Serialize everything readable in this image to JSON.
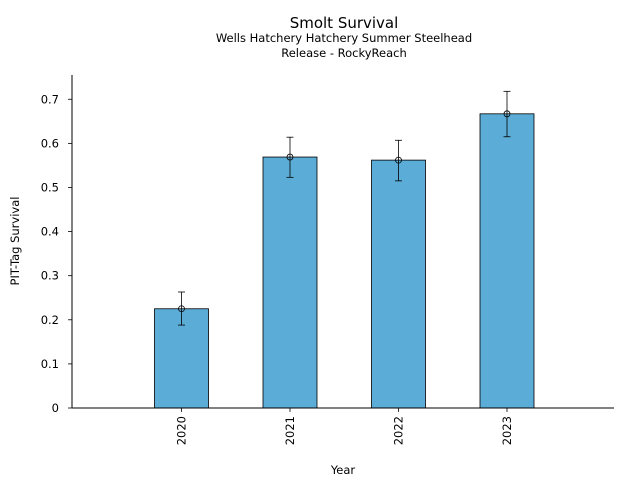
{
  "chart_data": {
    "type": "bar",
    "title": "Smolt Survival",
    "subtitle_lines": [
      "Wells Hatchery Hatchery Summer Steelhead",
      "Release - RockyReach"
    ],
    "xlabel": "Year",
    "ylabel": "PIT-Tag Survival",
    "categories": [
      "2020",
      "2021",
      "2022",
      "2023"
    ],
    "values": [
      0.225,
      0.569,
      0.562,
      0.667
    ],
    "error_low": [
      0.188,
      0.523,
      0.515,
      0.615
    ],
    "error_high": [
      0.263,
      0.614,
      0.607,
      0.718
    ],
    "ylim": [
      0,
      0.755
    ],
    "yticks": [
      0,
      0.1,
      0.2,
      0.3,
      0.4,
      0.5,
      0.6,
      0.7
    ],
    "ytick_labels": [
      "0",
      "0.1",
      "0.2",
      "0.3",
      "0.4",
      "0.5",
      "0.6",
      "0.7"
    ],
    "grid": false,
    "bar_color": "#5bacd6",
    "edge_color": "#000000"
  }
}
